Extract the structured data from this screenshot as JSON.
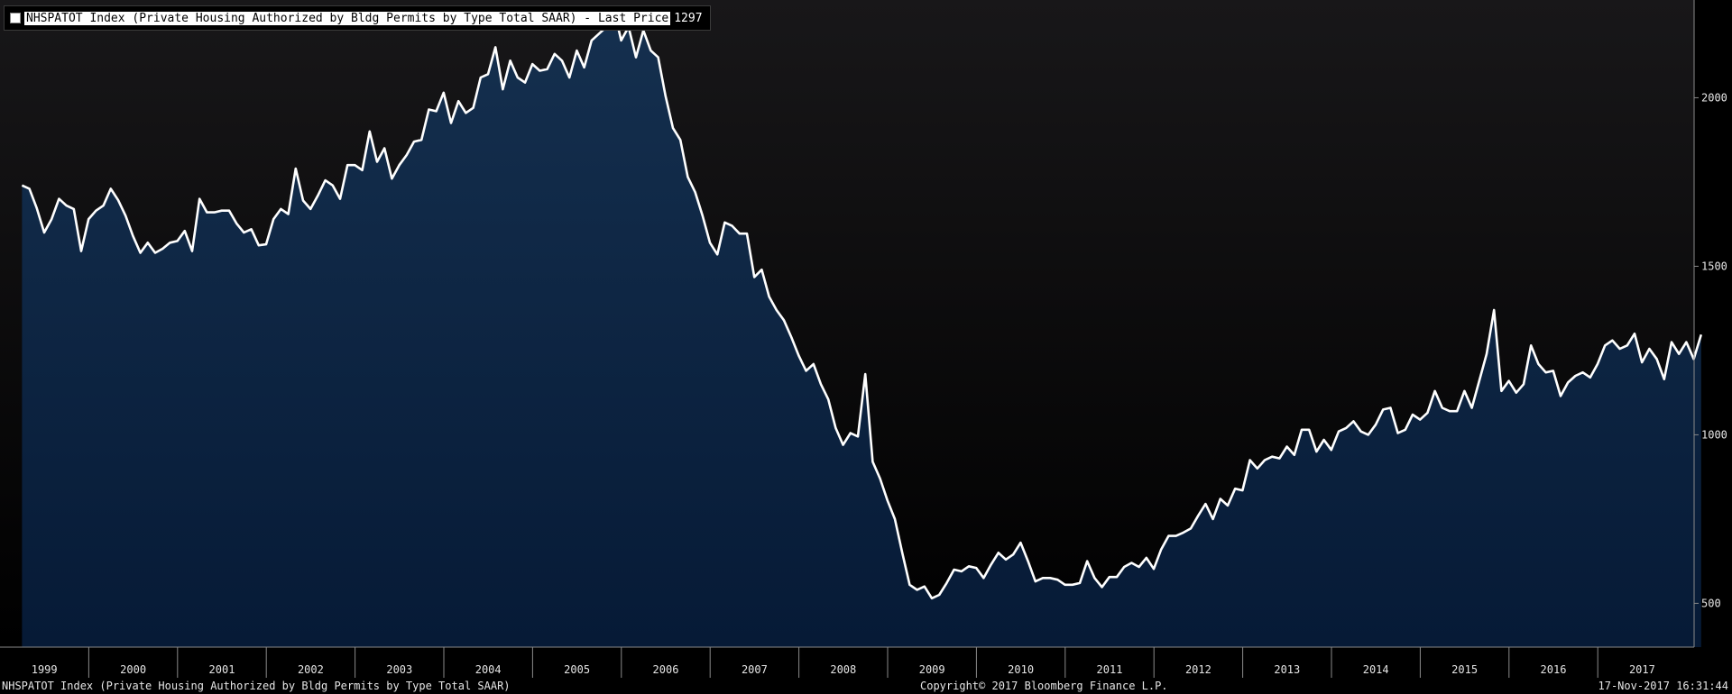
{
  "legend": {
    "label": "NHSPATOT Index (Private Housing Authorized by Bldg Permits by Type Total SAAR) - Last Price",
    "last_value": "1297"
  },
  "footer": {
    "series_name": "NHSPATOT Index (Private Housing Authorized by Bldg Permits by Type Total SAAR)",
    "copyright": "Copyright© 2017 Bloomberg Finance L.P.",
    "timestamp": "17-Nov-2017 16:31:44"
  },
  "colors": {
    "background_top": "#181719",
    "background_bottom": "#000000",
    "area_top": "#15304f",
    "area_bottom": "#061a36",
    "line": "#ffffff",
    "axis": "#8a8a8a",
    "text": "#e6e6e6"
  },
  "chart_data": {
    "type": "area",
    "title": "",
    "xlabel": "",
    "ylabel": "",
    "x_start": "1998-10",
    "x_end": "2017-10",
    "ylim": [
      370,
      2290
    ],
    "yticks": [
      500,
      1000,
      1500,
      2000
    ],
    "ytick_labels": [
      "500",
      "1000",
      "1500",
      "2000"
    ],
    "x_tick_labels": [
      "1999",
      "2000",
      "2001",
      "2002",
      "2003",
      "2004",
      "2005",
      "2006",
      "2007",
      "2008",
      "2009",
      "2010",
      "2011",
      "2012",
      "2013",
      "2014",
      "2015",
      "2016",
      "2017"
    ],
    "grid": false,
    "legend_position": "top-left",
    "series": [
      {
        "name": "NHSPATOT Index (Private Housing Authorized by Bldg Permits by Type Total SAAR) - Last Price",
        "period": "monthly",
        "start": "1998-10",
        "values": [
          1740,
          1730,
          1672,
          1600,
          1640,
          1700,
          1680,
          1670,
          1545,
          1640,
          1665,
          1680,
          1730,
          1696,
          1650,
          1590,
          1540,
          1570,
          1540,
          1552,
          1570,
          1575,
          1605,
          1545,
          1700,
          1660,
          1660,
          1665,
          1665,
          1627,
          1600,
          1610,
          1562,
          1565,
          1640,
          1670,
          1655,
          1790,
          1695,
          1670,
          1710,
          1755,
          1740,
          1700,
          1800,
          1800,
          1785,
          1900,
          1810,
          1850,
          1760,
          1800,
          1830,
          1870,
          1875,
          1965,
          1960,
          2015,
          1925,
          1990,
          1955,
          1970,
          2060,
          2070,
          2150,
          2025,
          2110,
          2060,
          2045,
          2100,
          2080,
          2085,
          2130,
          2110,
          2060,
          2140,
          2090,
          2170,
          2190,
          2210,
          2265,
          2170,
          2210,
          2120,
          2200,
          2140,
          2120,
          2005,
          1910,
          1875,
          1765,
          1720,
          1650,
          1570,
          1535,
          1630,
          1620,
          1597,
          1597,
          1468,
          1490,
          1410,
          1370,
          1340,
          1290,
          1235,
          1190,
          1210,
          1150,
          1105,
          1020,
          970,
          1005,
          995,
          1180,
          920,
          870,
          805,
          750,
          650,
          555,
          540,
          550,
          515,
          525,
          560,
          600,
          595,
          610,
          605,
          575,
          615,
          650,
          630,
          645,
          680,
          625,
          565,
          575,
          575,
          570,
          555,
          555,
          560,
          625,
          575,
          548,
          578,
          578,
          608,
          620,
          608,
          635,
          602,
          660,
          700,
          700,
          710,
          722,
          760,
          795,
          750,
          810,
          790,
          840,
          835,
          925,
          900,
          925,
          935,
          930,
          965,
          940,
          1015,
          1015,
          950,
          985,
          955,
          1010,
          1020,
          1040,
          1010,
          1000,
          1030,
          1075,
          1080,
          1005,
          1015,
          1060,
          1045,
          1065,
          1130,
          1080,
          1070,
          1070,
          1130,
          1080,
          1160,
          1240,
          1370,
          1130,
          1160,
          1125,
          1150,
          1265,
          1210,
          1185,
          1190,
          1115,
          1155,
          1175,
          1185,
          1170,
          1210,
          1265,
          1280,
          1255,
          1265,
          1300,
          1215,
          1255,
          1225,
          1165,
          1275,
          1240,
          1275,
          1225,
          1297
        ]
      }
    ]
  }
}
